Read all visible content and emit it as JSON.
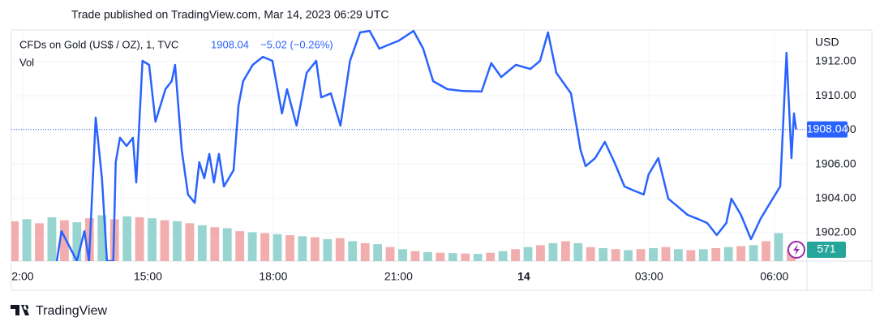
{
  "header": {
    "title": "Trade published on TradingView.com, Mar 14, 2023 06:29 UTC"
  },
  "chart_data": {
    "type": "line",
    "symbol": "CFDs on Gold (US$ / OZ), 1, TVC",
    "last": 1908.04,
    "change": "−5.02 (−0.26%)",
    "volume_title": "Vol",
    "y_label": "USD",
    "x": [
      12.82,
      12.93,
      13.3,
      13.48,
      13.59,
      13.75,
      13.9,
      14.02,
      14.17,
      14.23,
      14.33,
      14.49,
      14.64,
      14.72,
      14.87,
      15.03,
      15.18,
      15.42,
      15.57,
      15.65,
      15.81,
      15.96,
      16.12,
      16.23,
      16.35,
      16.47,
      16.58,
      16.7,
      16.82,
      17.05,
      17.17,
      17.28,
      17.51,
      17.75,
      17.98,
      18.21,
      18.33,
      18.56,
      18.8,
      19.03,
      19.15,
      19.38,
      19.61,
      19.84,
      20.08,
      20.31,
      20.54,
      20.78,
      21.01,
      21.36,
      21.59,
      21.83,
      22.17,
      22.52,
      22.99,
      23.22,
      23.46,
      23.81,
      24.16,
      24.39,
      24.58,
      24.78,
      25.13,
      25.36,
      25.48,
      25.71,
      25.94,
      26.17,
      26.41,
      26.64,
      26.87,
      26.99,
      27.22,
      27.46,
      27.69,
      27.92,
      28.16,
      28.39,
      28.62,
      28.85,
      28.97,
      29.2,
      29.44,
      29.67,
      29.9,
      30.14,
      30.29,
      30.41,
      30.47,
      30.52
    ],
    "series": [
      {
        "color": "#2962ff",
        "values": [
          1900.34,
          1902.09,
          1900.34,
          1902.09,
          1900.34,
          1908.73,
          1905.18,
          1900.34,
          1900.34,
          1906.12,
          1907.55,
          1907.07,
          1907.55,
          1904.94,
          1912.05,
          1911.81,
          1908.49,
          1910.39,
          1910.86,
          1911.81,
          1906.83,
          1904.23,
          1903.75,
          1906.12,
          1905.18,
          1906.6,
          1904.94,
          1906.6,
          1904.7,
          1905.65,
          1909.44,
          1910.86,
          1911.81,
          1912.28,
          1912.05,
          1908.97,
          1910.39,
          1908.26,
          1911.34,
          1912.05,
          1909.91,
          1910.15,
          1908.26,
          1912.05,
          1913.71,
          1913.8,
          1912.76,
          1913.0,
          1913.23,
          1913.8,
          1912.76,
          1910.86,
          1910.39,
          1910.29,
          1910.25,
          1911.91,
          1911.1,
          1911.81,
          1911.57,
          1912.05,
          1913.71,
          1911.34,
          1910.15,
          1906.83,
          1905.89,
          1906.36,
          1907.31,
          1906.12,
          1904.7,
          1904.46,
          1904.23,
          1905.41,
          1906.36,
          1903.99,
          1903.52,
          1903.04,
          1902.81,
          1902.57,
          1901.86,
          1902.57,
          1903.99,
          1903.04,
          1901.62,
          1902.81,
          1903.75,
          1904.7,
          1912.52,
          1906.36,
          1908.97,
          1908.04
        ]
      }
    ],
    "xlim": [
      11.73,
      30.78
    ],
    "ylim": [
      1900.34,
      1913.85
    ],
    "xticks": [
      {
        "value": 12,
        "label": "2:00"
      },
      {
        "value": 15,
        "label": "15:00"
      },
      {
        "value": 18,
        "label": "18:00"
      },
      {
        "value": 21,
        "label": "21:00"
      },
      {
        "value": 24,
        "label": "14"
      },
      {
        "value": 27,
        "label": "03:00"
      },
      {
        "value": 30,
        "label": "06:00"
      }
    ],
    "yticks": [
      {
        "value": 1902,
        "label": "1902.00"
      },
      {
        "value": 1904,
        "label": "1904.00"
      },
      {
        "value": 1906,
        "label": "1906.00"
      },
      {
        "value": 1908,
        "label": "1908.00"
      },
      {
        "value": 1910,
        "label": "1910.00"
      },
      {
        "value": 1912,
        "label": "1912.00"
      }
    ],
    "grid": true,
    "volume": {
      "x": [
        11.8,
        12.1,
        12.4,
        12.7,
        13.0,
        13.3,
        13.6,
        13.9,
        14.2,
        14.5,
        14.8,
        15.1,
        15.4,
        15.7,
        16.0,
        16.3,
        16.6,
        16.9,
        17.2,
        17.5,
        17.8,
        18.1,
        18.4,
        18.7,
        19.0,
        19.3,
        19.6,
        19.9,
        20.2,
        20.5,
        20.8,
        21.1,
        21.4,
        21.7,
        22.0,
        22.3,
        22.6,
        22.9,
        23.2,
        23.5,
        23.8,
        24.1,
        24.4,
        24.7,
        25.0,
        25.3,
        25.6,
        25.9,
        26.2,
        26.5,
        26.8,
        27.1,
        27.4,
        27.7,
        28.0,
        28.3,
        28.6,
        28.9,
        29.2,
        29.5,
        29.8,
        30.1,
        30.4
      ],
      "values": [
        2000,
        2100,
        1900,
        2200,
        2050,
        1950,
        2150,
        2300,
        2100,
        2250,
        2200,
        2150,
        2050,
        2000,
        1900,
        1800,
        1700,
        1650,
        1500,
        1450,
        1400,
        1350,
        1300,
        1250,
        1200,
        1100,
        1150,
        1000,
        900,
        850,
        700,
        600,
        500,
        450,
        420,
        400,
        380,
        360,
        420,
        500,
        600,
        700,
        800,
        900,
        1000,
        900,
        700,
        650,
        600,
        550,
        600,
        650,
        700,
        600,
        550,
        600,
        650,
        700,
        750,
        800,
        1000,
        1400,
        571
      ],
      "colors": [
        "#ef9a9a",
        "#80cbc4"
      ],
      "label_color": "#26a69a",
      "vlim": [
        0,
        11600
      ]
    }
  },
  "footer": {
    "brand": "TradingView"
  }
}
